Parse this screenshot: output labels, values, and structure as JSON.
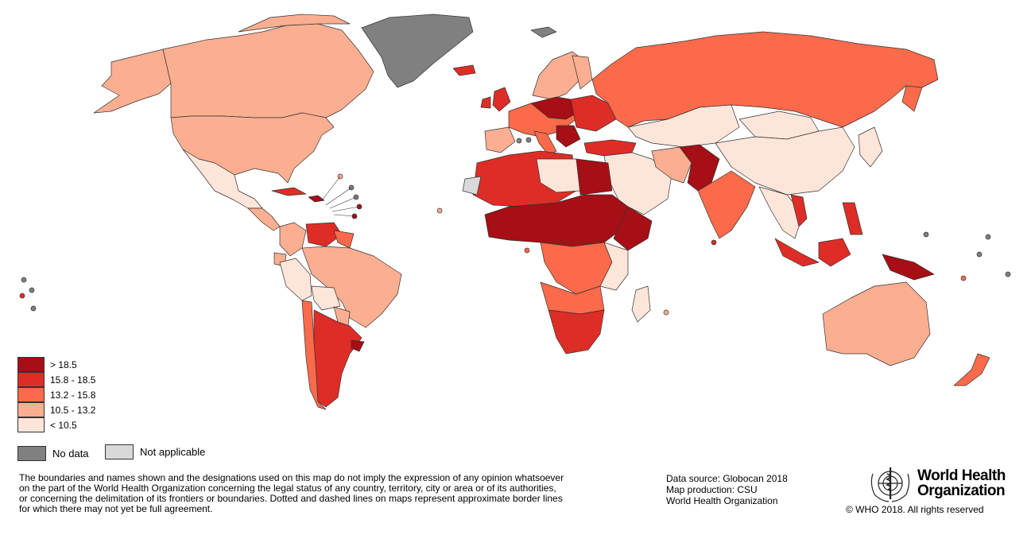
{
  "map": {
    "legend": [
      {
        "label": "> 18.5",
        "color": "#a50f15"
      },
      {
        "label": "15.8 - 18.5",
        "color": "#de2d26"
      },
      {
        "label": "13.2 - 15.8",
        "color": "#fb6a4a"
      },
      {
        "label": "10.5 - 13.2",
        "color": "#fcae91"
      },
      {
        "label": "< 10.5",
        "color": "#fee5d9"
      }
    ],
    "no_data": {
      "label": "No data",
      "color": "#808080"
    },
    "not_applicable": {
      "label": "Not applicable",
      "color": "#d9d9d9"
    },
    "ocean_color": "#ffffff",
    "border_color": "#333333"
  },
  "footer": {
    "disclaimer_lines": [
      "The boundaries and names shown and the designations used on this map do not imply the expression of any opinion whatsoever",
      "on the part of the World Health Organization concerning the legal status of any country, territory, city or area or of its authorities,",
      "or concerning the delimitation of its frontiers or boundaries. Dotted and dashed lines on maps represent approximate border lines",
      "for which there may not yet be full agreement."
    ],
    "credits": [
      "Data source: Globocan 2018",
      "Map production: CSU",
      "World Health Organization"
    ],
    "who_name_line1": "World Health",
    "who_name_line2": "Organization",
    "copyright": "© WHO 2018. All rights reserved"
  }
}
